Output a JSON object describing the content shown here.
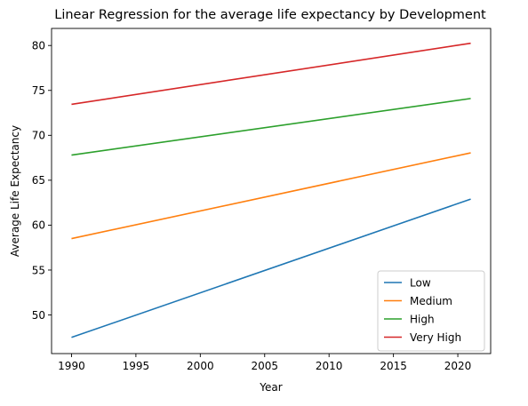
{
  "chart_data": {
    "type": "line",
    "title": "Linear Regression for the average life expectancy by Development",
    "xlabel": "Year",
    "ylabel": "Average Life Expectancy",
    "x": [
      1990,
      2021
    ],
    "xlim": [
      1988.45,
      2022.55
    ],
    "ylim": [
      45.7,
      81.9
    ],
    "xticks": [
      1990,
      1995,
      2000,
      2005,
      2010,
      2015,
      2020
    ],
    "yticks": [
      50,
      55,
      60,
      65,
      70,
      75,
      80
    ],
    "grid": false,
    "legend_position": "lower-right",
    "series": [
      {
        "name": "Low",
        "color": "#1f77b4",
        "values": [
          47.5,
          62.9
        ]
      },
      {
        "name": "Medium",
        "color": "#ff7f0e",
        "values": [
          58.5,
          68.05
        ]
      },
      {
        "name": "High",
        "color": "#2ca02c",
        "values": [
          67.8,
          74.1
        ]
      },
      {
        "name": "Very High",
        "color": "#d62728",
        "values": [
          73.45,
          80.25
        ]
      }
    ]
  }
}
